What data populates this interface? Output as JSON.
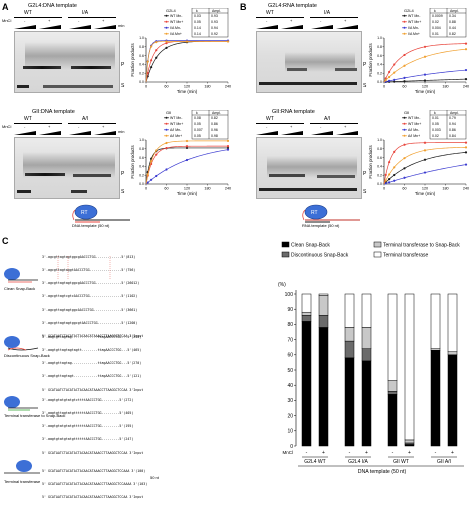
{
  "panelA": {
    "letter": "A",
    "top_title": "G2L4:DNA template",
    "bottom_title": "GII:DNA template",
    "top_groups": [
      "WT",
      "I/A"
    ],
    "bottom_groups": [
      "WT",
      "A/I"
    ],
    "mncl2": "MnCl",
    "minus": "-",
    "plus": "+",
    "min_label": "min",
    "lane_P": "P",
    "lane_S": "S",
    "top_table": {
      "name": "G2L4",
      "h1": "k",
      "h2": "Ampl.",
      "rows": [
        {
          "label": "WT Mn-",
          "k": "0.03",
          "a": "0.93",
          "color": "#1a1a1a"
        },
        {
          "label": "WT Mn+",
          "k": "0.05",
          "a": "0.93",
          "color": "#e8453c"
        },
        {
          "label": "I/A Mn-",
          "k": "0.14",
          "a": "0.94",
          "color": "#3a3ad0"
        },
        {
          "label": "I/A Mn+",
          "k": "0.14",
          "a": "0.92",
          "color": "#f0a030"
        }
      ]
    },
    "bottom_table": {
      "name": "GII",
      "h1": "k",
      "h2": "Ampl.",
      "rows": [
        {
          "label": "WT Mn-",
          "k": "0.08",
          "a": "0.82",
          "color": "#1a1a1a"
        },
        {
          "label": "WT Mn+",
          "k": "0.05",
          "a": "0.86",
          "color": "#e8453c"
        },
        {
          "label": "A/I Mn-",
          "k": "0.007",
          "a": "0.96",
          "color": "#3a3ad0"
        },
        {
          "label": "A/I Mn+",
          "k": "0.05",
          "a": "0.98",
          "color": "#f0a030"
        }
      ]
    },
    "xlabel": "Time (min)",
    "ylabel": "Fraction products",
    "template_label": "DNA template (50 nt)",
    "rt_label": "RT"
  },
  "panelB": {
    "letter": "B",
    "top_title": "G2L4:RNA template",
    "bottom_title": "GII:RNA template",
    "top_groups": [
      "WT",
      "I/A"
    ],
    "bottom_groups": [
      "WT",
      "A/I"
    ],
    "top_table": {
      "name": "G2L4",
      "h1": "k",
      "h2": "Ampl.",
      "rows": [
        {
          "label": "WT Mn-",
          "k": "0.0009",
          "a": "0.34",
          "color": "#1a1a1a"
        },
        {
          "label": "WT Mn+",
          "k": "0.02",
          "a": "0.88",
          "color": "#e8453c"
        },
        {
          "label": "I/A Mn-",
          "k": "0.004",
          "a": "0.44",
          "color": "#3a3ad0"
        },
        {
          "label": "I/A Mn+",
          "k": "0.01",
          "a": "0.82",
          "color": "#f0a030"
        }
      ]
    },
    "bottom_table": {
      "name": "GII",
      "h1": "k",
      "h2": "Ampl.",
      "rows": [
        {
          "label": "WT Mn-",
          "k": "0.01",
          "a": "0.79",
          "color": "#1a1a1a"
        },
        {
          "label": "WT Mn+",
          "k": "0.05",
          "a": "0.94",
          "color": "#e8453c"
        },
        {
          "label": "A/I Mn-",
          "k": "0.003",
          "a": "0.86",
          "color": "#3a3ad0"
        },
        {
          "label": "A/I Mn+",
          "k": "0.02",
          "a": "0.84",
          "color": "#f0a030"
        }
      ]
    },
    "template_label": "RNA template (50 nt)"
  },
  "panelC": {
    "letter": "C",
    "categories": [
      {
        "name": "Clean Snap-Back"
      },
      {
        "name": "Discontinuous Snap-Back"
      },
      {
        "name": "Terminal transferase to Snap-Back"
      },
      {
        "name": "Terminal transferase"
      }
    ],
    "seq_clean": [
      "3'-agcgttagtagtggcgAACCCTGG.............5'(813)",
      "3'-agcgttagtaggtAACCCTGG................5'(756)",
      "3'-agcgttagtagtggcgAACCCTGG.............5'(26012)",
      "3'-agcgttagtcgtcAACCCTGG................5'(1102)",
      "3'-agcgttagtagtggcAACCCTGG..............5'(3661)",
      "3'-agcgttagtagtggcgtAACCCTGG............5'(1200)",
      "5' GCATAATCTACATACTACAACATAAACCTTAAGGCTCCAA 3'Input"
    ],
    "seq_disc": [
      "3'-aagtgttagtag.............ttagAACCCTGG...5'(244)",
      "3'-aagtgttagtagtagtt........ttagAACCCTGG...5'(465)",
      "3'-aagtgttagtag.............ttagAACCCTGG...5'(270)",
      "3'-aagtgttagtagt............ttagAACCCTGG...5'(121)",
      "5' GCATAATCTACATACTACAACATAAACCTTAAGGCTCCAA 3'Input"
    ],
    "seq_tt_sb": [
      "3'-aagtgtatgtatgtcttttAACCCTGG.........5'(272)",
      "3'-aagtgttagtatgttttttAACCCTGG.........5'(405)",
      "3'-aagtgtatgtatgttttttAACCCTGG.........5'(195)",
      "3'-aagtgtatgtatgttttttAACCCTGG.........5'(247)",
      "5' GCATAATCTACATACTACAACATAAACCTTAAGGCTCCAA 3'Input"
    ],
    "seq_tt": [
      "5' GCATAATCTACATACTACAACATAAACCTTAAGGCTCCAAA 3'(100)",
      "5' GCATAATCTACATACTACAACATAAACCTTAAGGCTCCAAAA 3'(103)",
      "5' GCATAATCTACATACTACAACATAAACCTTAAGGCTCCAA 3'Input"
    ],
    "nt_label": "50 nt",
    "mncl2": "MnCl",
    "minus": "-",
    "plus": "+",
    "group_labels": [
      "G2L4 WT",
      "G2L4 I/A",
      "GII WT",
      "GII A/I"
    ],
    "xlabel": "DNA template (50 nt)",
    "ylabel": "(%)"
  },
  "chart_data": [
    {
      "type": "line",
      "title": "",
      "xlabel": "Time (min)",
      "ylabel": "Fraction products",
      "x_ticks": [
        0,
        60,
        120,
        180,
        240
      ],
      "y_ticks": [
        0,
        0.2,
        0.4,
        0.6,
        0.8,
        1.0
      ],
      "xlim": [
        0,
        240
      ],
      "ylim": [
        0,
        1.0
      ],
      "series": [
        {
          "name": "WT Mn-",
          "color": "#1a1a1a",
          "k": 0.03,
          "ampl": 0.93,
          "x": [
            5,
            15,
            30,
            60,
            120,
            240
          ]
        },
        {
          "name": "WT Mn+",
          "color": "#e8453c",
          "k": 0.05,
          "ampl": 0.93,
          "x": [
            5,
            15,
            30,
            60,
            120,
            240
          ]
        },
        {
          "name": "I/A Mn-",
          "color": "#3a3ad0",
          "k": 0.14,
          "ampl": 0.94,
          "x": [
            5,
            15,
            30,
            60,
            120,
            240
          ]
        },
        {
          "name": "I/A Mn+",
          "color": "#f0a030",
          "k": 0.14,
          "ampl": 0.92,
          "x": [
            5,
            15,
            30,
            60,
            120,
            240
          ]
        }
      ]
    },
    {
      "type": "line",
      "title": "",
      "xlabel": "Time (min)",
      "ylabel": "Fraction products",
      "x_ticks": [
        0,
        60,
        120,
        180,
        240
      ],
      "y_ticks": [
        0,
        0.2,
        0.4,
        0.6,
        0.8,
        1.0
      ],
      "xlim": [
        0,
        240
      ],
      "ylim": [
        0,
        1.0
      ],
      "series": [
        {
          "name": "WT Mn-",
          "color": "#1a1a1a",
          "k": 0.08,
          "ampl": 0.82,
          "x": [
            5,
            15,
            30,
            60,
            120,
            240
          ]
        },
        {
          "name": "WT Mn+",
          "color": "#e8453c",
          "k": 0.05,
          "ampl": 0.86,
          "x": [
            5,
            15,
            30,
            60,
            120,
            240
          ]
        },
        {
          "name": "A/I Mn-",
          "color": "#3a3ad0",
          "k": 0.007,
          "ampl": 0.96,
          "x": [
            5,
            15,
            30,
            60,
            120,
            240
          ]
        },
        {
          "name": "A/I Mn+",
          "color": "#f0a030",
          "k": 0.05,
          "ampl": 0.98,
          "x": [
            5,
            15,
            30,
            60,
            120,
            240
          ]
        }
      ]
    },
    {
      "type": "line",
      "title": "",
      "xlabel": "Time (min)",
      "ylabel": "Fraction products",
      "x_ticks": [
        0,
        60,
        120,
        180,
        240
      ],
      "y_ticks": [
        0,
        0.2,
        0.4,
        0.6,
        0.8,
        1.0
      ],
      "xlim": [
        0,
        240
      ],
      "ylim": [
        0,
        1.0
      ],
      "series": [
        {
          "name": "WT Mn-",
          "color": "#1a1a1a",
          "k": 0.0009,
          "ampl": 0.34,
          "x": [
            5,
            15,
            30,
            60,
            120,
            240
          ]
        },
        {
          "name": "WT Mn+",
          "color": "#e8453c",
          "k": 0.02,
          "ampl": 0.88,
          "x": [
            5,
            15,
            30,
            60,
            120,
            240
          ]
        },
        {
          "name": "I/A Mn-",
          "color": "#3a3ad0",
          "k": 0.004,
          "ampl": 0.44,
          "x": [
            5,
            15,
            30,
            60,
            120,
            240
          ]
        },
        {
          "name": "I/A Mn+",
          "color": "#f0a030",
          "k": 0.01,
          "ampl": 0.82,
          "x": [
            5,
            15,
            30,
            60,
            120,
            240
          ]
        }
      ]
    },
    {
      "type": "line",
      "title": "",
      "xlabel": "Time (min)",
      "ylabel": "Fraction products",
      "x_ticks": [
        0,
        60,
        120,
        180,
        240
      ],
      "y_ticks": [
        0,
        0.2,
        0.4,
        0.6,
        0.8,
        1.0
      ],
      "xlim": [
        0,
        240
      ],
      "ylim": [
        0,
        1.0
      ],
      "series": [
        {
          "name": "WT Mn-",
          "color": "#1a1a1a",
          "k": 0.01,
          "ampl": 0.79,
          "x": [
            5,
            15,
            30,
            60,
            120,
            240
          ]
        },
        {
          "name": "WT Mn+",
          "color": "#e8453c",
          "k": 0.05,
          "ampl": 0.94,
          "x": [
            5,
            15,
            30,
            60,
            120,
            240
          ]
        },
        {
          "name": "A/I Mn-",
          "color": "#3a3ad0",
          "k": 0.003,
          "ampl": 0.86,
          "x": [
            5,
            15,
            30,
            60,
            120,
            240
          ]
        },
        {
          "name": "A/I Mn+",
          "color": "#f0a030",
          "k": 0.02,
          "ampl": 0.84,
          "x": [
            5,
            15,
            30,
            60,
            120,
            240
          ]
        }
      ]
    },
    {
      "type": "bar",
      "stacked": true,
      "title": "",
      "xlabel": "DNA template (50 nt)",
      "ylabel": "(%)",
      "ylim": [
        0,
        100
      ],
      "y_ticks": [
        0,
        10,
        20,
        30,
        40,
        50,
        60,
        70,
        80,
        90,
        100
      ],
      "categories": [
        "G2L4 WT -",
        "G2L4 WT +",
        "G2L4 I/A -",
        "G2L4 I/A +",
        "GII WT -",
        "GII WT +",
        "GII A/I -",
        "GII A/I +"
      ],
      "legend_position": "top",
      "series": [
        {
          "name": "Clean Snap-Back",
          "color": "#000000",
          "values": [
            82,
            78,
            58,
            56,
            34,
            1,
            63,
            60
          ]
        },
        {
          "name": "Discontinuous Snap-Back",
          "color": "#6b6b6b",
          "values": [
            4,
            8,
            11,
            8,
            2,
            1,
            0,
            0
          ]
        },
        {
          "name": "Terminal transferase to Snap-Back",
          "color": "#c8c8c8",
          "values": [
            2,
            13,
            9,
            14,
            7,
            2,
            1,
            2
          ]
        },
        {
          "name": "Terminal transferase",
          "color": "#ffffff",
          "values": [
            12,
            1,
            22,
            22,
            57,
            96,
            36,
            38
          ]
        }
      ]
    }
  ]
}
